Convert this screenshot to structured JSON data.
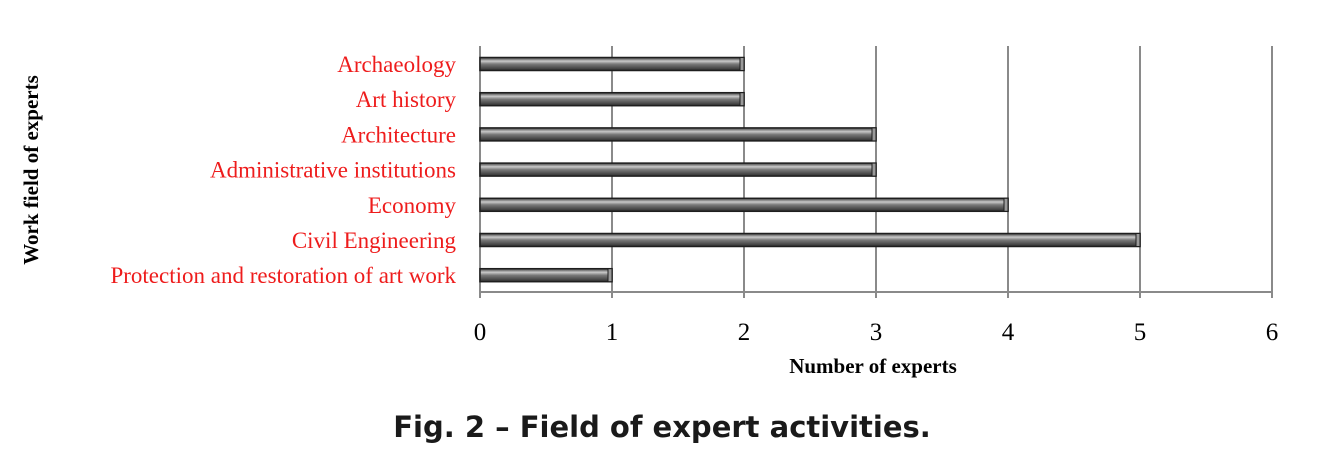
{
  "chart_data": {
    "type": "bar",
    "orientation": "horizontal",
    "categories": [
      "Archaeology",
      "Art history",
      "Architecture",
      "Administrative institutions",
      "Economy",
      "Civil Engineering",
      "Protection and restoration of art work"
    ],
    "values": [
      2,
      2,
      3,
      3,
      4,
      5,
      1
    ],
    "xlabel": "Number of experts",
    "ylabel": "Work field of experts",
    "xlim": [
      0,
      6
    ],
    "xticks": [
      "0",
      "1",
      "2",
      "3",
      "4",
      "5",
      "6"
    ],
    "grid": "vertical",
    "legend": "none"
  },
  "colors": {
    "category_label": "#ee1c1c",
    "bar_fill": "#4d4d4d",
    "bar_highlight": "#c9c9c9",
    "gridline": "#8a8a8a"
  },
  "caption": "Fig. 2 – Field of expert activities."
}
